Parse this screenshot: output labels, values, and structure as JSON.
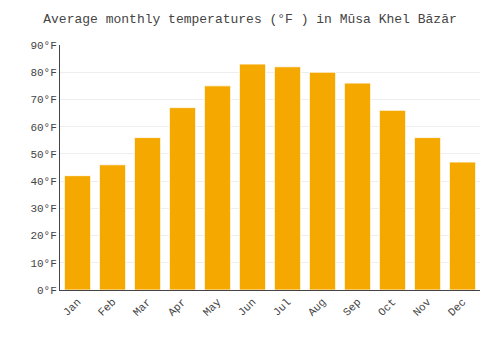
{
  "chart_data": {
    "type": "bar",
    "title": "Average monthly temperatures (°F ) in Mūsa Khel Bāzār",
    "categories": [
      "Jan",
      "Feb",
      "Mar",
      "Apr",
      "May",
      "Jun",
      "Jul",
      "Aug",
      "Sep",
      "Oct",
      "Nov",
      "Dec"
    ],
    "values": [
      42,
      46,
      56,
      67,
      75,
      83,
      82,
      80,
      76,
      66,
      56,
      47
    ],
    "color": "#F5A800",
    "ylim": [
      0,
      90
    ],
    "yticks": [
      {
        "value": 0,
        "label": "0°F"
      },
      {
        "value": 10,
        "label": "10°F"
      },
      {
        "value": 20,
        "label": "20°F"
      },
      {
        "value": 30,
        "label": "30°F"
      },
      {
        "value": 40,
        "label": "40°F"
      },
      {
        "value": 50,
        "label": "50°F"
      },
      {
        "value": 60,
        "label": "60°F"
      },
      {
        "value": 70,
        "label": "70°F"
      },
      {
        "value": 80,
        "label": "80°F"
      },
      {
        "value": 90,
        "label": "90°F"
      }
    ],
    "grid": true
  }
}
